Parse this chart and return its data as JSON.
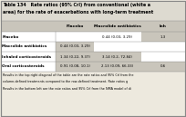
{
  "title_line1": "Table 134   Rate ratios (95% CrI) from conventional (white a",
  "title_line2": "area) for the rate of exacerbations with long-term treatment",
  "col_headers": [
    "",
    "Placebo",
    "Macrolide antibiotics",
    "Inh"
  ],
  "row_labels": [
    "Placebo",
    "Macrolide antibiotics",
    "Inhaled corticosteroids",
    "Oral corticosteroids"
  ],
  "cell_values": [
    [
      "",
      "0.44 (0.03, 3.29)",
      "1.3"
    ],
    [
      "0.44 (0.03, 3.29)",
      "",
      ""
    ],
    [
      "1.34 (0.22, 9.37)",
      "3.14 (0.2, 72.84)",
      ""
    ],
    [
      "0.91 (0.08, 10.1)",
      "2.13 (0.09, 66.33)",
      "0.6"
    ]
  ],
  "cell_bg": [
    [
      "white",
      "white",
      "grey"
    ],
    [
      "grey",
      "white",
      "white"
    ],
    [
      "grey",
      "grey",
      "white"
    ],
    [
      "grey",
      "grey",
      "grey"
    ]
  ],
  "footer_lines": [
    "Results in the top right diagonal of the table are the rate ratios and 95% CrI from the",
    "column-defined treatments compared to the row-defined treatment. Rate ratios g",
    "Results in the bottom left are the rate ratios and 95% CrI from the NMA model of di"
  ],
  "bg_color": "#ede9de",
  "white_cell": "#ffffff",
  "grey_cell": "#c9c5bb",
  "header_bg": "#c9c5bb",
  "border_color": "#888888",
  "title_bg": "#dddad0"
}
